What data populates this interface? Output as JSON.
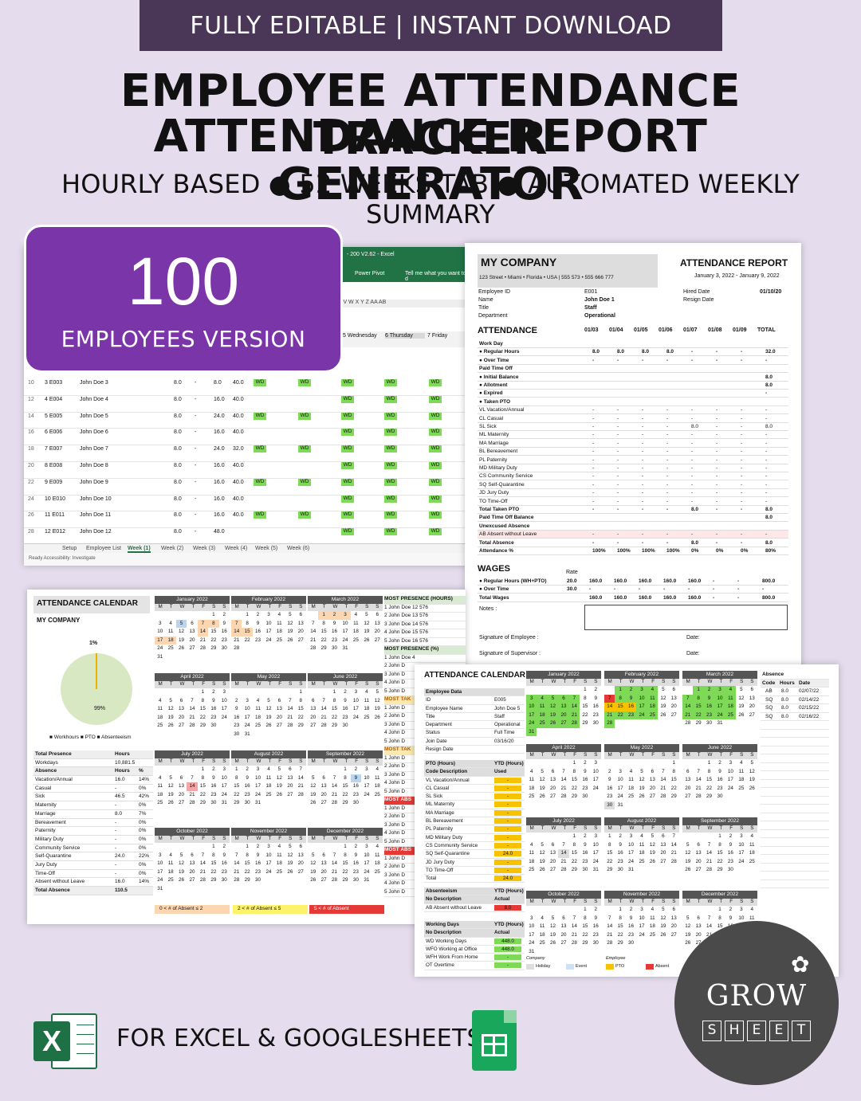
{
  "banner": "FULLY EDITABLE | INSTANT DOWNLOAD",
  "title_line1": "EMPLOYEE ATTENDANCE TRACKER",
  "title_line2": "ATTENDANCE REPORT GENERATOR",
  "subtitle": "HOURLY BASED ● 52 WEEKS TAB ● AUTOMATED WEEKLY SUMMARY",
  "badge": {
    "number": "100",
    "label": "EMPLOYEES VERSION"
  },
  "excel": {
    "title": "- 200 V2.62 - Excel",
    "ribbon_a": "Power Pivot",
    "ribbon_b": "Tell me what you want to d",
    "cols": "J   V   W   X   Y   Z  AA  AB",
    "days": [
      "5  Wednesday",
      "6  Thursday",
      "7  Friday"
    ],
    "rows": [
      {
        "n": "10",
        "id": "3  E003",
        "name": "John Doe 3",
        "a": "8.0",
        "b": "-",
        "c": "8.0",
        "d": "40.0"
      },
      {
        "n": "12",
        "id": "4  E004",
        "name": "John Doe 4",
        "a": "8.0",
        "b": "-",
        "c": "16.0",
        "d": "40.0"
      },
      {
        "n": "14",
        "id": "5  E005",
        "name": "John Doe 5",
        "a": "8.0",
        "b": "-",
        "c": "24.0",
        "d": "40.0"
      },
      {
        "n": "16",
        "id": "6  E006",
        "name": "John Doe 6",
        "a": "8.0",
        "b": "-",
        "c": "16.0",
        "d": "40.0"
      },
      {
        "n": "18",
        "id": "7  E007",
        "name": "John Doe 7",
        "a": "8.0",
        "b": "-",
        "c": "24.0",
        "d": "32.0"
      },
      {
        "n": "20",
        "id": "8  E008",
        "name": "John Doe 8",
        "a": "8.0",
        "b": "-",
        "c": "16.0",
        "d": "40.0"
      },
      {
        "n": "22",
        "id": "9  E009",
        "name": "John Doe 9",
        "a": "8.0",
        "b": "-",
        "c": "16.0",
        "d": "40.0"
      },
      {
        "n": "24",
        "id": "10  E010",
        "name": "John Doe 10",
        "a": "8.0",
        "b": "-",
        "c": "16.0",
        "d": "40.0"
      },
      {
        "n": "26",
        "id": "11  E011",
        "name": "John Doe 11",
        "a": "8.0",
        "b": "-",
        "c": "16.0",
        "d": "40.0"
      },
      {
        "n": "28",
        "id": "12  E012",
        "name": "John Doe 12",
        "a": "8.0",
        "b": "-",
        "c": "48.0",
        "d": ""
      }
    ],
    "wd": "WD",
    "tabs": [
      "Setup",
      "Employee List",
      "Week (1)",
      "Week (2)",
      "Week (3)",
      "Week (4)",
      "Week (5)",
      "Week (6)"
    ],
    "status": "Ready     Accessibility: Investigate"
  },
  "report": {
    "company": "MY COMPANY",
    "address": "123 Street • Miami • Florida • USA | 555 573 • 555 666 777",
    "title": "ATTENDANCE REPORT",
    "period": "January 3, 2022 - January 9, 2022",
    "employee_id_label": "Employee ID",
    "employee_id": "E001",
    "name_label": "Name",
    "name": "John Doe 1",
    "title_label": "Title",
    "title_val": "Staff",
    "dept_label": "Department",
    "dept": "Operational",
    "hired_label": "Hired Date",
    "hired": "01/10/20",
    "resign_label": "Resign Date",
    "attendance": "ATTENDANCE",
    "dates": [
      "01/03",
      "01/04",
      "01/05",
      "01/06",
      "01/07",
      "01/08",
      "01/09",
      "TOTAL"
    ],
    "rows": [
      {
        "label": "Work Day",
        "vals": [
          "",
          "",
          "",
          "",
          "",
          "",
          "",
          ""
        ],
        "bold": true
      },
      {
        "label": "●  Regular Hours",
        "vals": [
          "8.0",
          "8.0",
          "8.0",
          "8.0",
          "-",
          "-",
          "-",
          "32.0"
        ],
        "bold": true
      },
      {
        "label": "●  Over Time",
        "vals": [
          "-",
          "-",
          "-",
          "-",
          "-",
          "-",
          "-",
          "-"
        ],
        "bold": true
      },
      {
        "label": "Paid Time Off",
        "vals": [
          "",
          "",
          "",
          "",
          "",
          "",
          "",
          ""
        ],
        "bold": true
      },
      {
        "label": "●  Initial Balance",
        "vals": [
          "",
          "",
          "",
          "",
          "",
          "",
          "",
          "8.0"
        ],
        "bold": true
      },
      {
        "label": "●  Allotment",
        "vals": [
          "",
          "",
          "",
          "",
          "",
          "",
          "",
          "8.0"
        ],
        "bold": true
      },
      {
        "label": "●  Expired",
        "vals": [
          "",
          "",
          "",
          "",
          "",
          "",
          "",
          "-"
        ],
        "bold": true
      },
      {
        "label": "●  Taken PTO",
        "vals": [
          "",
          "",
          "",
          "",
          "",
          "",
          "",
          ""
        ],
        "bold": true
      },
      {
        "label": "VL  Vacation/Annual",
        "vals": [
          "-",
          "-",
          "-",
          "-",
          "-",
          "-",
          "-",
          "-"
        ]
      },
      {
        "label": "CL  Casual",
        "vals": [
          "-",
          "-",
          "-",
          "-",
          "-",
          "-",
          "-",
          "-"
        ]
      },
      {
        "label": "SL  Sick",
        "vals": [
          "-",
          "-",
          "-",
          "-",
          "8.0",
          "-",
          "-",
          "8.0"
        ]
      },
      {
        "label": "ML  Maternity",
        "vals": [
          "-",
          "-",
          "-",
          "-",
          "-",
          "-",
          "-",
          "-"
        ]
      },
      {
        "label": "MA  Marriage",
        "vals": [
          "-",
          "-",
          "-",
          "-",
          "-",
          "-",
          "-",
          "-"
        ]
      },
      {
        "label": "BL  Bereavement",
        "vals": [
          "-",
          "-",
          "-",
          "-",
          "-",
          "-",
          "-",
          "-"
        ]
      },
      {
        "label": "PL  Paternity",
        "vals": [
          "-",
          "-",
          "-",
          "-",
          "-",
          "-",
          "-",
          "-"
        ]
      },
      {
        "label": "MD  Military Duty",
        "vals": [
          "-",
          "-",
          "-",
          "-",
          "-",
          "-",
          "-",
          "-"
        ]
      },
      {
        "label": "CS  Community Service",
        "vals": [
          "-",
          "-",
          "-",
          "-",
          "-",
          "-",
          "-",
          "-"
        ]
      },
      {
        "label": "SQ  Self-Quarantine",
        "vals": [
          "-",
          "-",
          "-",
          "-",
          "-",
          "-",
          "-",
          "-"
        ]
      },
      {
        "label": "JD  Jury Duty",
        "vals": [
          "-",
          "-",
          "-",
          "-",
          "-",
          "-",
          "-",
          "-"
        ]
      },
      {
        "label": "TO  Time-Off",
        "vals": [
          "-",
          "-",
          "-",
          "-",
          "-",
          "-",
          "-",
          "-"
        ]
      },
      {
        "label": "      Total Taken PTO",
        "vals": [
          "-",
          "-",
          "-",
          "-",
          "8.0",
          "-",
          "-",
          "8.0"
        ],
        "bold": true
      },
      {
        "label": "Paid Time Off Balance",
        "vals": [
          "",
          "",
          "",
          "",
          "",
          "",
          "",
          "8.0"
        ],
        "bold": true
      },
      {
        "label": "Unexcused Absence",
        "vals": [
          "",
          "",
          "",
          "",
          "",
          "",
          "",
          ""
        ],
        "bold": true
      },
      {
        "label": "AB  Absent without Leave",
        "vals": [
          "-",
          "-",
          "-",
          "-",
          "-",
          "-",
          "-",
          "-"
        ],
        "pink": true
      },
      {
        "label": "Total Absence",
        "vals": [
          "-",
          "-",
          "-",
          "-",
          "8.0",
          "-",
          "-",
          "8.0"
        ],
        "bold": true
      },
      {
        "label": "Attendance %",
        "vals": [
          "100%",
          "100%",
          "100%",
          "100%",
          "0%",
          "0%",
          "0%",
          "80%"
        ],
        "bold": true
      }
    ],
    "wages": "WAGES",
    "rate_label": "Rate",
    "wage_rows": [
      {
        "label": "●  Regular Hours (WH+PTO)",
        "rate": "20.0",
        "vals": [
          "160.0",
          "160.0",
          "160.0",
          "160.0",
          "160.0",
          "-",
          "-",
          "800.0"
        ]
      },
      {
        "label": "●  Over Time",
        "rate": "30.0",
        "vals": [
          "-",
          "-",
          "-",
          "-",
          "-",
          "-",
          "-",
          "-"
        ]
      },
      {
        "label": "Total Wages",
        "rate": "",
        "vals": [
          "160.0",
          "160.0",
          "160.0",
          "160.0",
          "160.0",
          "-",
          "-",
          "800.0"
        ]
      }
    ],
    "notes": "Notes :",
    "sig_emp": "Signature of Employee :",
    "sig_sup": "Signature of Supervisor :",
    "date_label": "Date:"
  },
  "cal1": {
    "title": "ATTENDANCE CALENDAR",
    "company": "MY COMPANY",
    "pie_small": "1%",
    "pie_big": "99%",
    "legend": "■ Workhours  ■ PTO  ■ Absenteeism",
    "summary": [
      {
        "a": "Total Presence",
        "b": "Hours",
        "c": "",
        "bold": true
      },
      {
        "a": "     Workdays",
        "b": "10,881.5",
        "c": ""
      },
      {
        "a": "Absence",
        "b": "Hours",
        "c": "%",
        "bold": true
      },
      {
        "a": "  Vacation/Annual",
        "b": "16.0",
        "c": "14%"
      },
      {
        "a": "  Casual",
        "b": "-",
        "c": "0%"
      },
      {
        "a": "  Sick",
        "b": "46.5",
        "c": "42%"
      },
      {
        "a": "  Maternity",
        "b": "-",
        "c": "0%"
      },
      {
        "a": "  Marriage",
        "b": "8.0",
        "c": "7%"
      },
      {
        "a": "  Bereavement",
        "b": "-",
        "c": "0%"
      },
      {
        "a": "  Paternity",
        "b": "-",
        "c": "0%"
      },
      {
        "a": "  Military Duty",
        "b": "-",
        "c": "0%"
      },
      {
        "a": "  Community Service",
        "b": "-",
        "c": "0%"
      },
      {
        "a": "  Self-Quarantine",
        "b": "24.0",
        "c": "22%"
      },
      {
        "a": "  Jury Duty",
        "b": "-",
        "c": "0%"
      },
      {
        "a": "  Time-Off",
        "b": "-",
        "c": "0%"
      },
      {
        "a": "  Absent without Leave",
        "b": "16.0",
        "c": "14%"
      },
      {
        "a": "Total Absence",
        "b": "110.5",
        "c": "",
        "bold": true
      }
    ],
    "months": [
      "January 2022",
      "February 2022",
      "March 2022",
      "April 2022",
      "May 2022",
      "June 2022",
      "July 2022",
      "August 2022",
      "September 2022",
      "October 2022",
      "November 2022",
      "December 2022"
    ],
    "dow": [
      "M",
      "T",
      "W",
      "T",
      "F",
      "S",
      "S"
    ],
    "side": [
      {
        "t": "MOST PRESENCE (HOURS)",
        "c": "h"
      },
      {
        "t": "1  John Doe 12   576"
      },
      {
        "t": "2  John Doe 13   576"
      },
      {
        "t": "3  John Doe 14   576"
      },
      {
        "t": "4  John Doe 15   576"
      },
      {
        "t": "5  John Doe 16   576"
      },
      {
        "t": "MOST PRESENCE (%)",
        "c": "h"
      },
      {
        "t": "1  John Doe 4"
      },
      {
        "t": "2  John D"
      },
      {
        "t": "3  John D"
      },
      {
        "t": "4  John D"
      },
      {
        "t": "5  John D"
      },
      {
        "t": "MOST TAK",
        "c": "h2"
      },
      {
        "t": "1  John D"
      },
      {
        "t": "2  John D"
      },
      {
        "t": "3  John D"
      },
      {
        "t": "4  John D"
      },
      {
        "t": "5  John D"
      },
      {
        "t": "MOST TAK",
        "c": "h2"
      },
      {
        "t": "1  John D"
      },
      {
        "t": "2  John D"
      },
      {
        "t": "3  John D"
      },
      {
        "t": "4  John D"
      },
      {
        "t": "5  John D"
      },
      {
        "t": "MOST ABS",
        "c": "h3"
      },
      {
        "t": "1  John D"
      },
      {
        "t": "2  John D"
      },
      {
        "t": "3  John D"
      },
      {
        "t": "4  John D"
      },
      {
        "t": "5  John D"
      },
      {
        "t": "MOST ABS",
        "c": "h3"
      },
      {
        "t": "1  John D"
      },
      {
        "t": "2  John D"
      },
      {
        "t": "3  John D"
      },
      {
        "t": "4  John D"
      },
      {
        "t": "5  John D"
      }
    ],
    "legend_a": "0  <  # of Absent  ≤  2",
    "legend_b": "2  <  # of Absent  ≤  5",
    "legend_c": "5  <  # of Absent"
  },
  "cal2": {
    "title": "ATTENDANCE CALENDAR",
    "employee": [
      {
        "a": "Employee Data",
        "b": "",
        "h": true
      },
      {
        "a": "ID",
        "b": "E005"
      },
      {
        "a": "Employee Name",
        "b": "John Doe 5"
      },
      {
        "a": "Title",
        "b": "Staff"
      },
      {
        "a": "Department",
        "b": "Operational"
      },
      {
        "a": "Status",
        "b": "Full Time"
      },
      {
        "a": "Join Date",
        "b": "03/16/20"
      },
      {
        "a": "Resign Date",
        "b": ""
      }
    ],
    "pto": [
      {
        "a": "PTO (Hours)",
        "b": "YTD (Hours)",
        "h": true
      },
      {
        "a": "Code Description",
        "b": "Used",
        "h": true
      },
      {
        "a": "VL  Vacation/Annual",
        "b": "-"
      },
      {
        "a": "CL  Casual",
        "b": "-"
      },
      {
        "a": "SL  Sick",
        "b": "-"
      },
      {
        "a": "ML  Maternity",
        "b": "-"
      },
      {
        "a": "MA  Marriage",
        "b": "-"
      },
      {
        "a": "BL  Bereavement",
        "b": "-"
      },
      {
        "a": "PL  Paternity",
        "b": "-"
      },
      {
        "a": "MD  Military Duty",
        "b": "-"
      },
      {
        "a": "CS  Community Service",
        "b": "-"
      },
      {
        "a": "SQ  Self-Quarantine",
        "b": "24.0"
      },
      {
        "a": "JD  Jury Duty",
        "b": "-"
      },
      {
        "a": "TO  Time-Off",
        "b": "-"
      },
      {
        "a": "Total",
        "b": "24.0"
      }
    ],
    "abs": [
      {
        "a": "Absenteeism",
        "b": "YTD (Hours)",
        "h": true
      },
      {
        "a": "No  Description",
        "b": "Actual",
        "h": true
      },
      {
        "a": "AB  Absent without Leave",
        "b": "8.0"
      }
    ],
    "work": [
      {
        "a": "Working Days",
        "b": "YTD (Hours)",
        "h": true
      },
      {
        "a": "No  Description",
        "b": "Actual",
        "h": true
      },
      {
        "a": "WD  Working Days",
        "b": "448.0"
      },
      {
        "a": "WFO Working at Office",
        "b": "448.0"
      },
      {
        "a": "WFH Work From Home",
        "b": "-"
      },
      {
        "a": "OT  Overtime",
        "b": "-"
      }
    ],
    "absence_head": [
      "Absence",
      "Code",
      "Hours",
      "Date"
    ],
    "absence_rows": [
      {
        "c": "AB",
        "h": "8.0",
        "d": "02/07/22"
      },
      {
        "c": "SQ",
        "h": "8.0",
        "d": "02/14/22"
      },
      {
        "c": "SQ",
        "h": "8.0",
        "d": "02/15/22"
      },
      {
        "c": "SQ",
        "h": "8.0",
        "d": "02/16/22"
      }
    ],
    "legend": [
      "Company",
      "Holiday",
      "Event",
      "Employee",
      "PTO",
      "Absent"
    ]
  },
  "logo": {
    "top": "GROW",
    "letters": [
      "S",
      "H",
      "E",
      "E",
      "T"
    ]
  },
  "footer": "FOR EXCEL & GOOGLESHEETS"
}
